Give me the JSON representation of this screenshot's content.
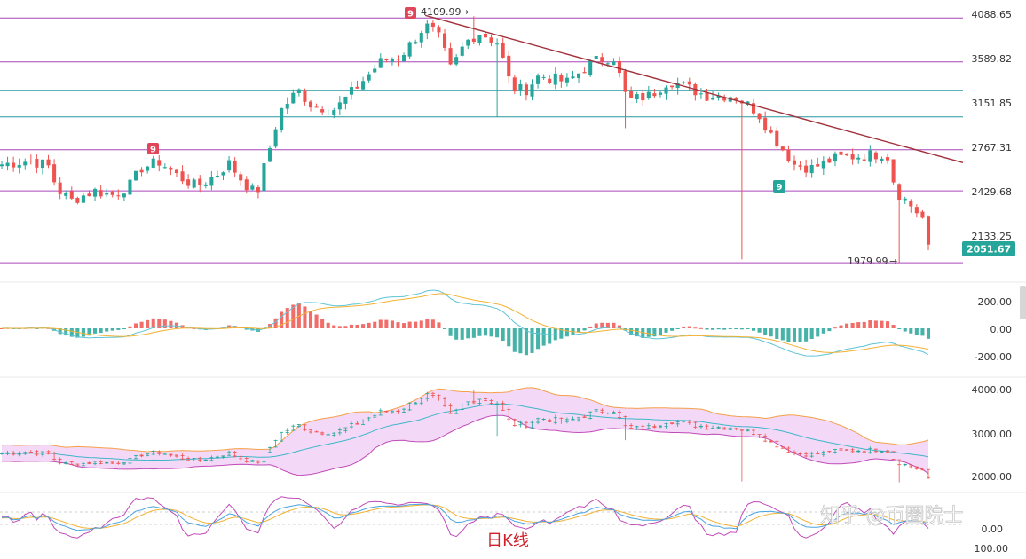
{
  "colors": {
    "up": "#26a69a",
    "down": "#ef5350",
    "hline_purple": "#9c27b0",
    "hline_teal": "#00838f",
    "trendline": "#a0313a",
    "boll_fill": "#f3d9f7",
    "boll_upper": "#f5a04a",
    "boll_lower": "#c04bb8",
    "boll_mid": "#3fb6c8",
    "macd_dif": "#5ec4d6",
    "macd_dea": "#f2b233",
    "kdj_k": "#4aa3df",
    "kdj_d": "#f2b233",
    "kdj_j": "#c04bb8",
    "price_tag": "#26a69a"
  },
  "main_axis_labels": [
    "4088.65",
    "3589.82",
    "3151.85",
    "2767.31",
    "2429.68",
    "2133.25"
  ],
  "current_price": "2051.67",
  "high_label": "4109.99",
  "low_label": "1979.99",
  "macd_axis_labels": [
    "200.00",
    "0.00",
    "-200.00"
  ],
  "boll_axis_labels": [
    "4000.00",
    "3000.00",
    "2000.00"
  ],
  "kdj_axis_labels": [
    "0.00",
    "100.00"
  ],
  "td_badges": [
    "9",
    "9",
    "9"
  ],
  "caption": "日K线",
  "watermark": "知乎 @币圈院士",
  "chart_data": {
    "type": "candlestick",
    "title": "",
    "y_scale": "log",
    "ylim": [
      1960,
      4200
    ],
    "horizontal_levels": [
      {
        "value": 4088.65,
        "color": "purple"
      },
      {
        "value": 3589.82,
        "color": "purple"
      },
      {
        "value": 3300,
        "color": "teal"
      },
      {
        "value": 3050,
        "color": "teal"
      },
      {
        "value": 2767.31,
        "color": "purple"
      },
      {
        "value": 2450,
        "color": "purple"
      },
      {
        "value": 1979.99,
        "color": "purple"
      }
    ],
    "trendline": [
      [
        0.457,
        4120
      ],
      [
        0.938,
        2870
      ]
    ],
    "anchors": [
      [
        0,
        2650
      ],
      [
        0.03,
        2680
      ],
      [
        0.05,
        2640
      ],
      [
        0.06,
        2460
      ],
      [
        0.075,
        2380
      ],
      [
        0.1,
        2450
      ],
      [
        0.12,
        2420
      ],
      [
        0.14,
        2500
      ],
      [
        0.15,
        2620
      ],
      [
        0.17,
        2670
      ],
      [
        0.19,
        2560
      ],
      [
        0.21,
        2480
      ],
      [
        0.23,
        2560
      ],
      [
        0.245,
        2660
      ],
      [
        0.26,
        2520
      ],
      [
        0.275,
        2420
      ],
      [
        0.29,
        2800
      ],
      [
        0.3,
        3100
      ],
      [
        0.32,
        3300
      ],
      [
        0.335,
        3150
      ],
      [
        0.36,
        3120
      ],
      [
        0.385,
        3350
      ],
      [
        0.41,
        3600
      ],
      [
        0.43,
        3650
      ],
      [
        0.44,
        3770
      ],
      [
        0.457,
        4000
      ],
      [
        0.47,
        3900
      ],
      [
        0.485,
        3500
      ],
      [
        0.5,
        3800
      ],
      [
        0.515,
        3920
      ],
      [
        0.535,
        3800
      ],
      [
        0.55,
        3320
      ],
      [
        0.565,
        3300
      ],
      [
        0.58,
        3450
      ],
      [
        0.61,
        3380
      ],
      [
        0.64,
        3600
      ],
      [
        0.66,
        3650
      ],
      [
        0.675,
        3200
      ],
      [
        0.7,
        3250
      ],
      [
        0.72,
        3400
      ],
      [
        0.76,
        3250
      ],
      [
        0.79,
        3250
      ],
      [
        0.815,
        3100
      ],
      [
        0.83,
        2900
      ],
      [
        0.855,
        2650
      ],
      [
        0.875,
        2620
      ],
      [
        0.9,
        2700
      ],
      [
        0.93,
        2720
      ],
      [
        0.955,
        2740
      ],
      [
        0.965,
        2450
      ],
      [
        0.985,
        2320
      ],
      [
        0.995,
        2250
      ],
      [
        1.0,
        2060
      ]
    ],
    "n_candles": 160,
    "macd": {
      "ylim": [
        -230,
        230
      ]
    },
    "boll": {
      "ylim": [
        1850,
        4300
      ]
    },
    "kdj": {
      "ylim": [
        0,
        100
      ]
    }
  }
}
